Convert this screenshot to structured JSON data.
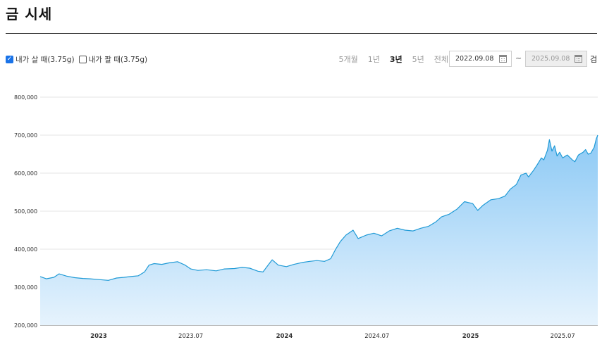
{
  "page": {
    "title": "금 시세"
  },
  "options": [
    {
      "label": "내가 살 때(3.75g)",
      "checked": true
    },
    {
      "label": "내가 팔 때(3.75g)",
      "checked": false
    }
  ],
  "periods": [
    {
      "label": "5개월",
      "active": false
    },
    {
      "label": "1년",
      "active": false
    },
    {
      "label": "3년",
      "active": true
    },
    {
      "label": "5년",
      "active": false
    },
    {
      "label": "전체",
      "active": false
    }
  ],
  "date_range": {
    "start": "2022.09.08",
    "separator": "~",
    "end": "2025.09.08"
  },
  "search_label": "검",
  "colors": {
    "line": "#1f9ad6",
    "fill_top": "#8cc9f5",
    "fill_bottom": "#e6f3fd",
    "grid": "#e6e6e6"
  },
  "chart_data": {
    "type": "area",
    "title": "",
    "xlabel": "",
    "ylabel": "",
    "ylim": [
      200000,
      800000
    ],
    "yticks": [
      {
        "value": 200000,
        "label": "200,000"
      },
      {
        "value": 300000,
        "label": "300,000"
      },
      {
        "value": 400000,
        "label": "400,000"
      },
      {
        "value": 500000,
        "label": "500,000"
      },
      {
        "value": 600000,
        "label": "600,000"
      },
      {
        "value": 700000,
        "label": "700,000"
      },
      {
        "value": 800000,
        "label": "800,000"
      }
    ],
    "xlim": [
      "2022-09-08",
      "2025-09-08"
    ],
    "xticks": [
      {
        "date": "2023-01-01",
        "label": "2023",
        "bold": true
      },
      {
        "date": "2023-07-01",
        "label": "2023.07",
        "bold": false
      },
      {
        "date": "2024-01-01",
        "label": "2024",
        "bold": true
      },
      {
        "date": "2024-07-01",
        "label": "2024.07",
        "bold": false
      },
      {
        "date": "2025-01-01",
        "label": "2025",
        "bold": true
      },
      {
        "date": "2025-07-01",
        "label": "2025.07",
        "bold": false
      }
    ],
    "grid": true,
    "series": [
      {
        "name": "내가 살 때(3.75g)",
        "points": [
          [
            "2022-09-08",
            328000
          ],
          [
            "2022-09-20",
            322000
          ],
          [
            "2022-10-05",
            326000
          ],
          [
            "2022-10-15",
            335000
          ],
          [
            "2022-10-30",
            329000
          ],
          [
            "2022-11-15",
            325000
          ],
          [
            "2022-12-01",
            323000
          ],
          [
            "2022-12-15",
            322000
          ],
          [
            "2023-01-01",
            320000
          ],
          [
            "2023-01-20",
            318000
          ],
          [
            "2023-02-05",
            324000
          ],
          [
            "2023-02-20",
            326000
          ],
          [
            "2023-03-05",
            328000
          ],
          [
            "2023-03-20",
            330000
          ],
          [
            "2023-04-01",
            340000
          ],
          [
            "2023-04-10",
            358000
          ],
          [
            "2023-04-20",
            362000
          ],
          [
            "2023-05-05",
            360000
          ],
          [
            "2023-05-20",
            364000
          ],
          [
            "2023-06-05",
            367000
          ],
          [
            "2023-06-20",
            358000
          ],
          [
            "2023-07-01",
            348000
          ],
          [
            "2023-07-15",
            344000
          ],
          [
            "2023-08-01",
            346000
          ],
          [
            "2023-08-20",
            343000
          ],
          [
            "2023-09-05",
            348000
          ],
          [
            "2023-09-25",
            349000
          ],
          [
            "2023-10-10",
            352000
          ],
          [
            "2023-10-25",
            350000
          ],
          [
            "2023-11-10",
            342000
          ],
          [
            "2023-11-20",
            340000
          ],
          [
            "2023-12-01",
            360000
          ],
          [
            "2023-12-08",
            372000
          ],
          [
            "2023-12-20",
            358000
          ],
          [
            "2024-01-05",
            354000
          ],
          [
            "2024-01-20",
            360000
          ],
          [
            "2024-02-05",
            365000
          ],
          [
            "2024-02-20",
            368000
          ],
          [
            "2024-03-05",
            370000
          ],
          [
            "2024-03-20",
            368000
          ],
          [
            "2024-04-01",
            375000
          ],
          [
            "2024-04-10",
            398000
          ],
          [
            "2024-04-20",
            420000
          ],
          [
            "2024-05-01",
            437000
          ],
          [
            "2024-05-15",
            450000
          ],
          [
            "2024-05-25",
            428000
          ],
          [
            "2024-06-10",
            437000
          ],
          [
            "2024-06-25",
            442000
          ],
          [
            "2024-07-10",
            435000
          ],
          [
            "2024-07-25",
            448000
          ],
          [
            "2024-08-10",
            455000
          ],
          [
            "2024-08-25",
            450000
          ],
          [
            "2024-09-10",
            448000
          ],
          [
            "2024-09-25",
            455000
          ],
          [
            "2024-10-10",
            460000
          ],
          [
            "2024-10-25",
            472000
          ],
          [
            "2024-11-05",
            485000
          ],
          [
            "2024-11-20",
            492000
          ],
          [
            "2024-12-05",
            505000
          ],
          [
            "2024-12-20",
            525000
          ],
          [
            "2025-01-05",
            520000
          ],
          [
            "2025-01-15",
            502000
          ],
          [
            "2025-01-25",
            515000
          ],
          [
            "2025-02-10",
            530000
          ],
          [
            "2025-02-25",
            533000
          ],
          [
            "2025-03-10",
            540000
          ],
          [
            "2025-03-20",
            558000
          ],
          [
            "2025-04-01",
            570000
          ],
          [
            "2025-04-10",
            595000
          ],
          [
            "2025-04-20",
            600000
          ],
          [
            "2025-04-25",
            590000
          ],
          [
            "2025-05-05",
            608000
          ],
          [
            "2025-05-12",
            622000
          ],
          [
            "2025-05-20",
            640000
          ],
          [
            "2025-05-25",
            635000
          ],
          [
            "2025-06-01",
            660000
          ],
          [
            "2025-06-05",
            688000
          ],
          [
            "2025-06-10",
            658000
          ],
          [
            "2025-06-15",
            672000
          ],
          [
            "2025-06-20",
            645000
          ],
          [
            "2025-06-25",
            655000
          ],
          [
            "2025-07-01",
            640000
          ],
          [
            "2025-07-10",
            648000
          ],
          [
            "2025-07-20",
            635000
          ],
          [
            "2025-07-25",
            630000
          ],
          [
            "2025-08-01",
            648000
          ],
          [
            "2025-08-10",
            655000
          ],
          [
            "2025-08-15",
            662000
          ],
          [
            "2025-08-20",
            650000
          ],
          [
            "2025-08-25",
            652000
          ],
          [
            "2025-09-01",
            668000
          ],
          [
            "2025-09-05",
            690000
          ],
          [
            "2025-09-08",
            700000
          ]
        ]
      }
    ]
  }
}
